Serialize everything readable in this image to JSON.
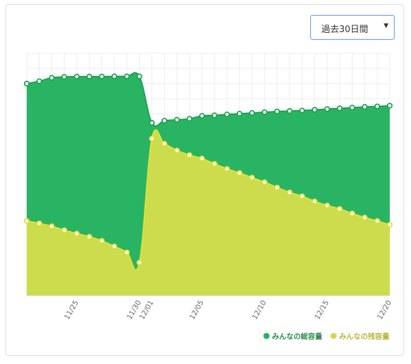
{
  "range_select": {
    "selected": "過去30日間"
  },
  "colors": {
    "total": "#28b463",
    "remaining": "#cddc4c",
    "total_line": "#1ea152",
    "remaining_line": "#dde23a"
  },
  "chart_data": {
    "type": "area",
    "title": "",
    "xlabel": "",
    "ylabel": "",
    "grid": true,
    "legend_placement": "bottom-right",
    "x": [
      "11/21",
      "11/22",
      "11/23",
      "11/24",
      "11/25",
      "11/26",
      "11/27",
      "11/28",
      "11/29",
      "11/30",
      "12/01",
      "12/02",
      "12/03",
      "12/04",
      "12/05",
      "12/06",
      "12/07",
      "12/08",
      "12/09",
      "12/10",
      "12/11",
      "12/12",
      "12/13",
      "12/14",
      "12/15",
      "12/16",
      "12/17",
      "12/18",
      "12/19",
      "12/20"
    ],
    "tick_labels": [
      "11/25",
      "11/30",
      "12/01",
      "12/05",
      "12/10",
      "12/15",
      "12/20"
    ],
    "ylim": [
      0,
      100
    ],
    "series": [
      {
        "name": "みんなの総容量",
        "values": [
          87.5,
          88.5,
          89.9,
          90.3,
          90.4,
          90.4,
          90.4,
          90.5,
          90.5,
          90.5,
          71.3,
          72.2,
          72.6,
          73.0,
          74.2,
          74.4,
          74.8,
          75.1,
          75.4,
          75.7,
          76.0,
          76.2,
          76.4,
          76.7,
          77.0,
          77.3,
          77.6,
          77.9,
          78.1,
          78.4
        ]
      },
      {
        "name": "みんなの残容量",
        "values": [
          30.8,
          29.8,
          28.6,
          27.0,
          25.6,
          24.3,
          22.6,
          20.3,
          17.8,
          13.6,
          64.8,
          62.7,
          59.9,
          58.0,
          56.6,
          54.4,
          52.3,
          50.6,
          48.7,
          46.8,
          44.6,
          42.6,
          41.0,
          38.9,
          37.2,
          35.8,
          33.9,
          32.2,
          30.8,
          29.2
        ]
      }
    ]
  }
}
